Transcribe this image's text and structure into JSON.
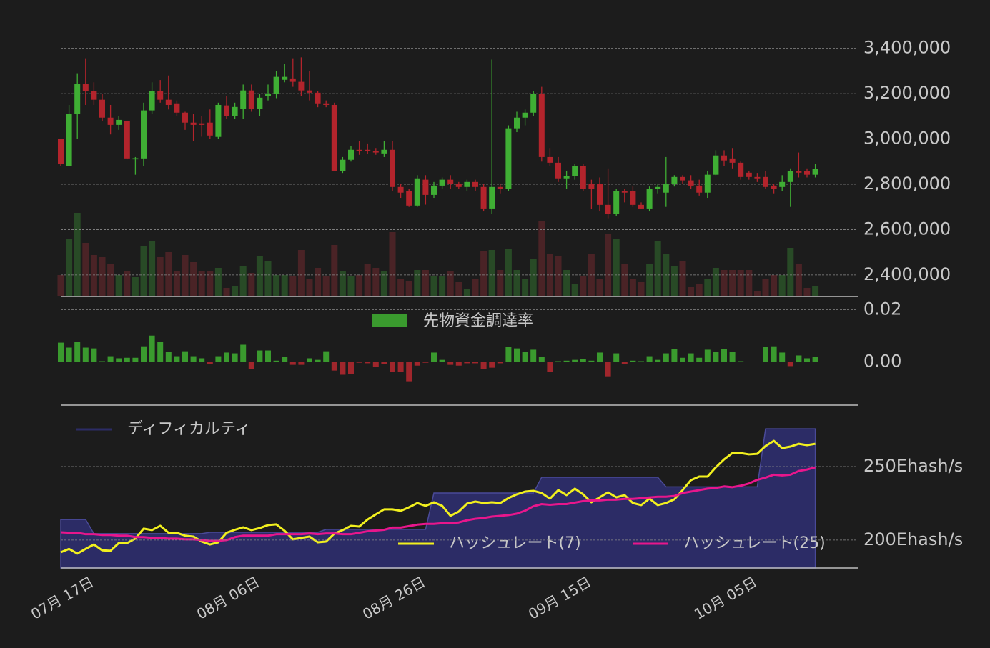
{
  "chart_data": [
    {
      "type": "candlestick",
      "open": [
        2999000,
        2879000,
        3110000,
        3242000,
        3211000,
        3173000,
        3094000,
        3062000,
        3078000,
        2910000,
        2914000,
        3126000,
        3211000,
        3173000,
        3157000,
        3116000,
        3072000,
        3069000,
        3072000,
        3009000,
        3148000,
        3100000,
        3132000,
        3214000,
        3132000,
        3189000,
        3198000,
        3261000,
        3267000,
        3252000,
        3214000,
        3204000,
        3157000,
        3150000,
        2857000,
        2908000,
        2952000,
        2952000,
        2945000,
        2936000,
        2952000,
        2788000,
        2769000,
        2706000,
        2820000,
        2753000,
        2794000,
        2820000,
        2801000,
        2788000,
        2810000,
        2788000,
        2693000,
        2788000,
        2779000,
        3047000,
        3094000,
        3116000,
        3198000,
        2920000,
        2895000,
        2826000,
        2835000,
        2879000,
        2801000,
        2801000,
        2709000,
        2668000,
        2769000,
        2769000,
        2709000,
        2693000,
        2779000,
        2763000,
        2801000,
        2832000,
        2817000,
        2794000,
        2763000,
        2842000,
        2927000,
        2914000,
        2895000,
        2851000,
        2832000,
        2832000,
        2794000,
        2788000,
        2810000,
        2857000,
        2857000,
        2842000
      ],
      "high": [
        3000000,
        3150000,
        3290000,
        3356000,
        3250000,
        3200000,
        3150000,
        3100000,
        3080000,
        2920000,
        3160000,
        3250000,
        3260000,
        3280000,
        3170000,
        3120000,
        3110000,
        3100000,
        3130000,
        3160000,
        3190000,
        3160000,
        3240000,
        3240000,
        3200000,
        3240000,
        3300000,
        3330000,
        3356000,
        3360000,
        3300000,
        3210000,
        3170000,
        3160000,
        2920000,
        2970000,
        2990000,
        2980000,
        2960000,
        2990000,
        2990000,
        2800000,
        2780000,
        2840000,
        2840000,
        2810000,
        2830000,
        2840000,
        2810000,
        2820000,
        2820000,
        2800000,
        3350000,
        2800000,
        3060000,
        3120000,
        3130000,
        3210000,
        3230000,
        2960000,
        2920000,
        2860000,
        2890000,
        2890000,
        2820000,
        2830000,
        2870000,
        2780000,
        2780000,
        2790000,
        2720000,
        2790000,
        2800000,
        2920000,
        2840000,
        2840000,
        2840000,
        2820000,
        2860000,
        2950000,
        2950000,
        2960000,
        2900000,
        2860000,
        2850000,
        2860000,
        2800000,
        2840000,
        2870000,
        2940000,
        2870000,
        2890000
      ],
      "low": [
        2880000,
        2879000,
        3000000,
        3150000,
        3150000,
        3080000,
        3020000,
        3040000,
        2910000,
        2842000,
        2880000,
        3110000,
        3160000,
        3130000,
        3100000,
        3040000,
        2990000,
        3010000,
        3000000,
        3000000,
        3090000,
        3090000,
        3090000,
        3120000,
        3100000,
        3170000,
        3180000,
        3250000,
        3230000,
        3190000,
        3170000,
        3140000,
        3140000,
        2857000,
        2850000,
        2900000,
        2930000,
        2935000,
        2930000,
        2920000,
        2770000,
        2740000,
        2700000,
        2700000,
        2710000,
        2740000,
        2780000,
        2780000,
        2780000,
        2770000,
        2770000,
        2680000,
        2670000,
        2760000,
        2770000,
        3030000,
        3060000,
        3100000,
        2900000,
        2880000,
        2810000,
        2780000,
        2820000,
        2770000,
        2690000,
        2680000,
        2650000,
        2660000,
        2720000,
        2700000,
        2690000,
        2680000,
        2760000,
        2700000,
        2790000,
        2800000,
        2780000,
        2750000,
        2740000,
        2840000,
        2880000,
        2870000,
        2820000,
        2820000,
        2810000,
        2780000,
        2760000,
        2770000,
        2700000,
        2830000,
        2830000,
        2830000
      ],
      "close": [
        2889000,
        3110000,
        3242000,
        3211000,
        3173000,
        3094000,
        3062000,
        3084000,
        2914000,
        2915000,
        3126000,
        3211000,
        3173000,
        3150000,
        3116000,
        3072000,
        3062000,
        3062000,
        3015000,
        3150000,
        3100000,
        3141000,
        3214000,
        3132000,
        3182000,
        3198000,
        3274000,
        3274000,
        3252000,
        3214000,
        3204000,
        3157000,
        3150000,
        2857000,
        2908000,
        2952000,
        2945000,
        2945000,
        2940000,
        2952000,
        2788000,
        2763000,
        2706000,
        2826000,
        2753000,
        2794000,
        2820000,
        2801000,
        2788000,
        2810000,
        2788000,
        2693000,
        2788000,
        2779000,
        3047000,
        3094000,
        3116000,
        3198000,
        2920000,
        2895000,
        2826000,
        2835000,
        2879000,
        2779000,
        2779000,
        2709000,
        2668000,
        2769000,
        2763000,
        2709000,
        2693000,
        2779000,
        2788000,
        2801000,
        2832000,
        2817000,
        2794000,
        2763000,
        2842000,
        2927000,
        2905000,
        2895000,
        2832000,
        2832000,
        2826000,
        2788000,
        2779000,
        2810000,
        2857000,
        2851000,
        2842000,
        2867000
      ],
      "volume": [
        30,
        80,
        117,
        75,
        58,
        55,
        45,
        30,
        35,
        27,
        70,
        77,
        55,
        62,
        35,
        58,
        48,
        35,
        35,
        40,
        12,
        15,
        42,
        33,
        57,
        50,
        30,
        30,
        28,
        65,
        25,
        40,
        28,
        72,
        35,
        28,
        30,
        45,
        40,
        35,
        90,
        25,
        22,
        37,
        37,
        28,
        28,
        35,
        20,
        10,
        25,
        63,
        65,
        37,
        67,
        37,
        25,
        53,
        105,
        60,
        57,
        37,
        18,
        28,
        60,
        25,
        88,
        80,
        45,
        25,
        20,
        45,
        78,
        60,
        42,
        50,
        13,
        17,
        25,
        40,
        37,
        37,
        37,
        37,
        8,
        25,
        30,
        30,
        68,
        45,
        12,
        14
      ],
      "up_color": "#3fae34",
      "down_color": "#b3242c",
      "volume_up_color": "#284a26",
      "volume_down_color": "#4a2326",
      "ylim": [
        2305000,
        3440000
      ],
      "yticks": [
        {
          "value": 2400000,
          "label": "2,400,000"
        },
        {
          "value": 2600000,
          "label": "2,600,000"
        },
        {
          "value": 2800000,
          "label": "2,800,000"
        },
        {
          "value": 3000000,
          "label": "3,000,000"
        },
        {
          "value": 3200000,
          "label": "3,200,000"
        },
        {
          "value": 3400000,
          "label": "3,400,000"
        }
      ],
      "grid": true
    },
    {
      "type": "bar",
      "series": [
        {
          "name": "先物資金調達率",
          "color": "#3a9a2e",
          "values": [
            0.0074,
            0.0055,
            0.0077,
            0.0055,
            0.0052,
            0.0003,
            0.0022,
            0.0014,
            0.0016,
            0.0016,
            0.006,
            0.0101,
            0.0077,
            0.0038,
            0.0022,
            0.0041,
            0.0022,
            0.0014,
            -0.0008,
            0.0022,
            0.0036,
            0.0033,
            0.0066,
            -0.0027,
            0.0044,
            0.0044,
            0.0005,
            0.0019,
            -0.0011,
            -0.0011,
            0.0014,
            0.0008,
            0.0041,
            -0.0033,
            -0.0049,
            -0.0047,
            -0.0003,
            -0.0005,
            -0.0019,
            -0.0008,
            -0.0038,
            -0.0038,
            -0.0074,
            -0.0014,
            -0.0003,
            0.0036,
            0.0008,
            -0.0011,
            -0.0014,
            -0.0005,
            -0.0005,
            -0.0027,
            -0.0022,
            -0.0005,
            0.0058,
            0.0052,
            0.0038,
            0.0047,
            0.0019,
            -0.0038,
            0.0003,
            0.0005,
            0.0008,
            0.0011,
            0.0005,
            0.0036,
            -0.0055,
            0.0033,
            -0.0008,
            0.0005,
            0.0003,
            0.0022,
            0.0008,
            0.0033,
            0.0049,
            0.0016,
            0.0033,
            0.0016,
            0.0047,
            0.0038,
            0.0049,
            0.0038,
            0.0003,
            0.0001,
            0.0001,
            0.0058,
            0.006,
            0.0036,
            -0.0016,
            0.0025,
            0.0014,
            0.0019
          ]
        }
      ],
      "negative_color": "#a0262c",
      "ylim": [
        -0.016,
        0.024
      ],
      "yticks": [
        {
          "value": 0,
          "label": "0.00"
        },
        0.02
      ],
      "grid": true,
      "legend": "upper center"
    },
    {
      "type": "line",
      "categories": [
        "07月 17日",
        null,
        null,
        null,
        null,
        null,
        null,
        null,
        null,
        null,
        null,
        null,
        null,
        null,
        null,
        null,
        null,
        null,
        null,
        null,
        "08月 06日",
        null,
        null,
        null,
        null,
        null,
        null,
        null,
        null,
        null,
        null,
        null,
        null,
        null,
        null,
        null,
        null,
        null,
        null,
        null,
        "08月 26日",
        null,
        null,
        null,
        null,
        null,
        null,
        null,
        null,
        null,
        null,
        null,
        null,
        null,
        null,
        null,
        null,
        null,
        null,
        null,
        "09月 15日",
        null,
        null,
        null,
        null,
        null,
        null,
        null,
        null,
        null,
        null,
        null,
        null,
        null,
        null,
        null,
        null,
        null,
        null,
        null,
        "10月 05日",
        null,
        null,
        null,
        null,
        null,
        null,
        null,
        null,
        null,
        null,
        null
      ],
      "series": [
        {
          "name": "ディフィカルティ",
          "color": "#2c2c66",
          "style": "area",
          "values": [
            214,
            214,
            214,
            214,
            204.4,
            204.4,
            204.4,
            204.4,
            204.4,
            204.4,
            204.4,
            204.4,
            204.4,
            204.4,
            204.4,
            204.4,
            204.4,
            204.4,
            205.3,
            205.3,
            205.3,
            205.3,
            205.3,
            205.3,
            205.3,
            205.3,
            205.3,
            205.3,
            205.3,
            205.3,
            205.3,
            205.3,
            207.3,
            207.3,
            207.3,
            207.3,
            207.3,
            207.3,
            207.3,
            207.3,
            207.3,
            207.3,
            207.3,
            207.3,
            207.3,
            232,
            232,
            232,
            232,
            232,
            232,
            232,
            232,
            232,
            232,
            232,
            232,
            232,
            242.7,
            242.7,
            242.7,
            242.7,
            242.7,
            242.7,
            242.7,
            242.7,
            242.7,
            242.7,
            242.7,
            242.7,
            242.7,
            242.7,
            242.7,
            236.2,
            236.2,
            236.2,
            236.2,
            236.2,
            236.2,
            236.2,
            236.2,
            236.2,
            236.2,
            236.2,
            236.2,
            275.7,
            275.7,
            275.7,
            275.7,
            275.7,
            275.7,
            275.7
          ]
        },
        {
          "name": "ハッシュレート(7)",
          "color": "#f2f01e",
          "values": [
            191.7,
            194,
            190.8,
            194,
            197,
            193,
            192.7,
            198,
            198,
            201,
            207.8,
            206.8,
            209.7,
            205,
            204.9,
            203,
            202.4,
            199,
            197,
            198.5,
            205,
            207,
            208.7,
            206.8,
            208.2,
            210.2,
            210.7,
            206.3,
            200.5,
            201.5,
            202.4,
            198.5,
            199,
            204.4,
            206.8,
            209.7,
            209.2,
            214,
            217.5,
            220.9,
            220.9,
            219.9,
            222.3,
            225.2,
            223.3,
            225.7,
            223.3,
            216.5,
            219.4,
            224.8,
            226.2,
            225.2,
            225.7,
            225.2,
            228.6,
            231.1,
            233,
            233.5,
            232,
            228.2,
            234,
            230.6,
            235,
            231.1,
            225.7,
            229.1,
            232.5,
            229.1,
            230.6,
            225.2,
            223.8,
            228.2,
            223.8,
            225.2,
            227.7,
            234,
            240.8,
            243.2,
            243.2,
            249.5,
            254.9,
            259.2,
            259.2,
            258.3,
            258.7,
            264,
            267.5,
            262.6,
            263.6,
            265.5,
            264.6,
            265.5
          ]
        },
        {
          "name": "ハッシュレート(25)",
          "color": "#e8168c",
          "values": [
            205.3,
            205,
            205,
            204,
            204,
            203.5,
            203.5,
            203,
            203,
            202,
            202,
            201.5,
            201.5,
            201,
            201,
            200.5,
            200.5,
            200,
            199.5,
            199.5,
            200,
            202,
            203,
            203,
            203,
            203,
            204,
            204,
            204,
            204,
            204.5,
            204,
            204.5,
            204.5,
            204,
            204,
            205,
            206,
            206.5,
            207,
            208.5,
            208.5,
            209.5,
            210.5,
            211,
            211,
            211.5,
            211.5,
            212,
            213.5,
            214.5,
            215,
            216,
            216.5,
            217,
            218,
            220,
            223,
            224.5,
            224,
            224.5,
            224.5,
            225.5,
            226.5,
            227,
            227,
            227.5,
            227.5,
            228,
            228,
            228.5,
            229,
            229.5,
            229.5,
            230,
            232,
            233,
            234,
            235,
            235.5,
            236.5,
            236,
            237,
            238.5,
            241,
            242.5,
            244.5,
            244,
            244.5,
            247,
            248,
            249.5
          ]
        }
      ],
      "ylim": [
        181,
        285
      ],
      "yticks": [
        {
          "value": 200,
          "label": "200Ehash/s"
        },
        {
          "value": 250,
          "label": "250Ehash/s"
        }
      ],
      "grid": true
    }
  ]
}
